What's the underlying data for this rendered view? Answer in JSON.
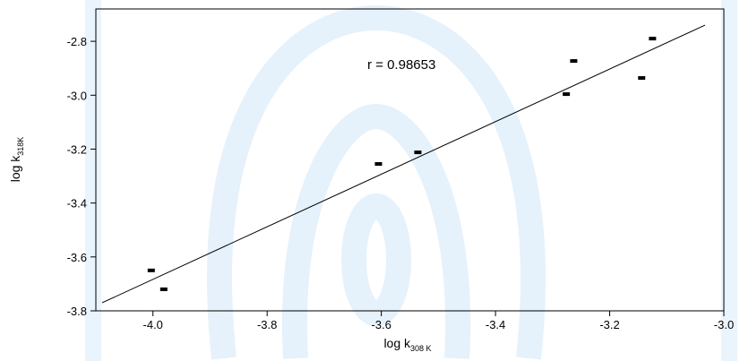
{
  "chart_data": {
    "type": "scatter",
    "x_label": "log k",
    "x_label_subscript": "308 K",
    "y_label": "log k",
    "y_label_subscript": "318K",
    "annotation": "r = 0.98653",
    "x": [
      -4.003,
      -3.981,
      -3.605,
      -3.536,
      -3.276,
      -3.263,
      -3.144,
      -3.125
    ],
    "values": [
      -3.65,
      -3.72,
      -3.255,
      -3.212,
      -2.996,
      -2.873,
      -2.936,
      -2.79
    ],
    "color": "#000000",
    "fit_line": {
      "x": [
        -4.089,
        -3.033
      ],
      "y": [
        -3.77,
        -2.74
      ],
      "color": "#000000"
    },
    "xlim": [
      -4.1,
      -3.0
    ],
    "xticks": [
      {
        "value": -4,
        "label": "-4.0"
      },
      -3.8,
      -3.6,
      -3.4,
      -3.2,
      {
        "value": -3,
        "label": "-3.0"
      }
    ],
    "ylim": [
      -3.8,
      -2.68
    ],
    "yticks": [
      -3.8,
      -3.6,
      -3.4,
      -3.2,
      {
        "value": -3,
        "label": "-3.0"
      },
      -2.8
    ],
    "grid": false
  }
}
